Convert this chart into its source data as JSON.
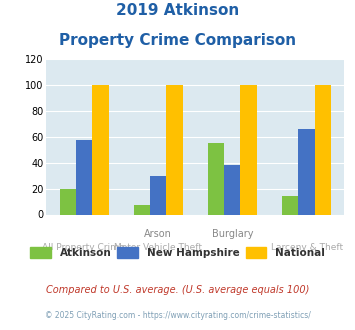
{
  "title_line1": "2019 Atkinson",
  "title_line2": "Property Crime Comparison",
  "atkinson": [
    20,
    7,
    55,
    14
  ],
  "new_hampshire": [
    58,
    30,
    38,
    66
  ],
  "national": [
    100,
    100,
    100,
    100
  ],
  "atkinson_color": "#7dc242",
  "nh_color": "#4472c4",
  "national_color": "#ffc000",
  "bg_color": "#dce9f0",
  "ylim": [
    0,
    120
  ],
  "yticks": [
    0,
    20,
    40,
    60,
    80,
    100,
    120
  ],
  "title_color": "#1f5fa6",
  "legend_labels": [
    "Atkinson",
    "New Hampshire",
    "National"
  ],
  "row1_labels": [
    "",
    "Arson",
    "Burglary",
    ""
  ],
  "row2_labels": [
    "All Property Crime",
    "Motor Vehicle Theft",
    "",
    "Larceny & Theft"
  ],
  "row1_color": "#888888",
  "row2_color": "#aaaaaa",
  "footnote1": "Compared to U.S. average. (U.S. average equals 100)",
  "footnote2": "© 2025 CityRating.com - https://www.cityrating.com/crime-statistics/",
  "footnote1_color": "#c0392b",
  "footnote2_color": "#7f9fb5"
}
